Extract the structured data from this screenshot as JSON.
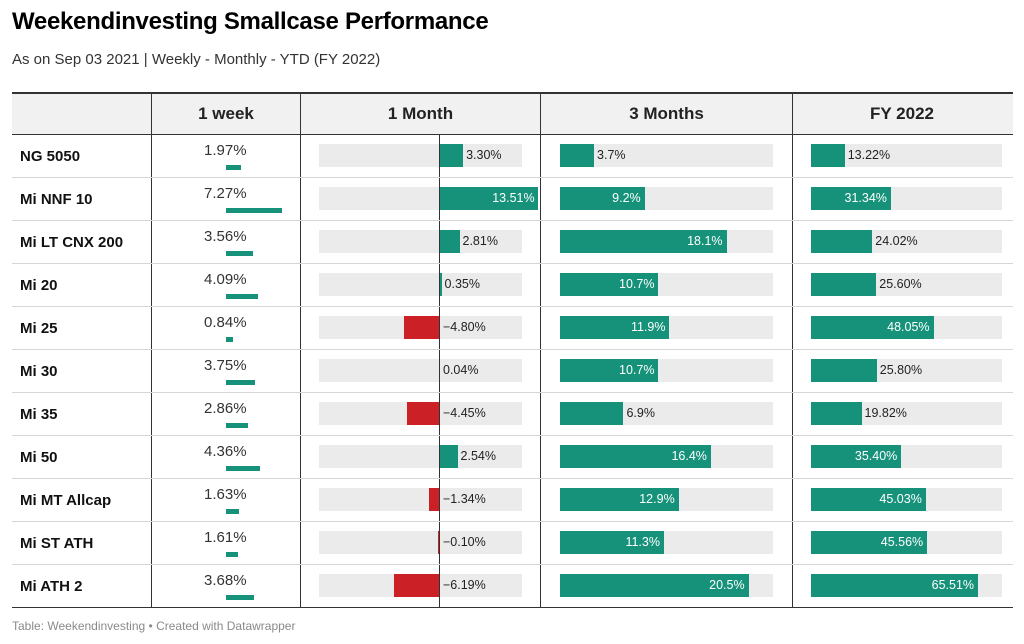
{
  "title": "Weekendinvesting Smallcase Performance",
  "subtitle": "As on Sep 03 2021 | Weekly - Monthly - YTD (FY 2022)",
  "footer": "Table: Weekendinvesting • Created with Datawrapper",
  "colors": {
    "positive": "#16927a",
    "negative": "#cc2027",
    "track": "#ebebeb"
  },
  "chart_data": {
    "type": "table",
    "columns": [
      "",
      "1 week",
      "1 Month",
      "3 Months",
      "FY 2022"
    ],
    "rows": [
      {
        "name": "NG 5050",
        "week": "1.97%",
        "month": "3.30%",
        "three_months": "3.7%",
        "fy2022": "13.22%"
      },
      {
        "name": "Mi NNF 10",
        "week": "7.27%",
        "month": "13.51%",
        "three_months": "9.2%",
        "fy2022": "31.34%"
      },
      {
        "name": "Mi LT CNX 200",
        "week": "3.56%",
        "month": "2.81%",
        "three_months": "18.1%",
        "fy2022": "24.02%"
      },
      {
        "name": "Mi 20",
        "week": "4.09%",
        "month": "0.35%",
        "three_months": "10.7%",
        "fy2022": "25.60%"
      },
      {
        "name": "Mi 25",
        "week": "0.84%",
        "month": "−4.80%",
        "three_months": "11.9%",
        "fy2022": "48.05%"
      },
      {
        "name": "Mi 30",
        "week": "3.75%",
        "month": "0.04%",
        "three_months": "10.7%",
        "fy2022": "25.80%"
      },
      {
        "name": "Mi 35",
        "week": "2.86%",
        "month": "−4.45%",
        "three_months": "6.9%",
        "fy2022": "19.82%"
      },
      {
        "name": "Mi 50",
        "week": "4.36%",
        "month": "2.54%",
        "three_months": "16.4%",
        "fy2022": "35.40%"
      },
      {
        "name": "Mi MT Allcap",
        "week": "1.63%",
        "month": "−1.34%",
        "three_months": "12.9%",
        "fy2022": "45.03%"
      },
      {
        "name": "Mi ST ATH",
        "week": "1.61%",
        "month": "−0.10%",
        "three_months": "11.3%",
        "fy2022": "45.56%"
      },
      {
        "name": "Mi ATH 2",
        "week": "3.68%",
        "month": "−6.19%",
        "three_months": "20.5%",
        "fy2022": "65.51%"
      }
    ]
  }
}
